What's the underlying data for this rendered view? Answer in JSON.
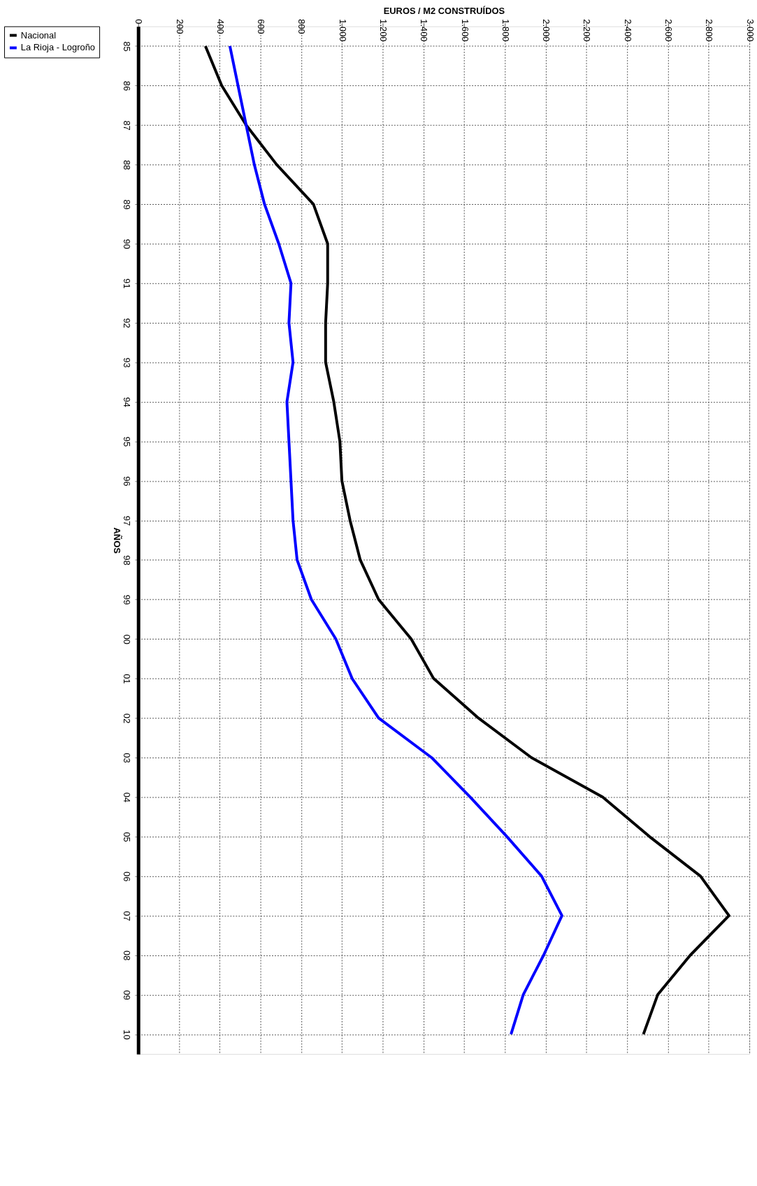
{
  "chart_data": {
    "type": "line",
    "orientation": "horizontal",
    "xlabel": "EUROS / M2 CONSTRUÍDOS",
    "ylabel": "AÑOS",
    "categories": [
      "85",
      "86",
      "87",
      "88",
      "89",
      "90",
      "91",
      "92",
      "93",
      "94",
      "95",
      "96",
      "97",
      "98",
      "99",
      "00",
      "01",
      "02",
      "03",
      "04",
      "05",
      "06",
      "07",
      "08",
      "09",
      "10"
    ],
    "series": [
      {
        "name": "Nacional",
        "color": "#000000",
        "values": [
          330,
          410,
          530,
          680,
          860,
          930,
          930,
          920,
          920,
          960,
          990,
          1000,
          1040,
          1090,
          1180,
          1340,
          1450,
          1670,
          1930,
          2280,
          2510,
          2760,
          2900,
          2710,
          2550,
          2480
        ]
      },
      {
        "name": "La Rioja - Logroño",
        "color": "#0000ff",
        "values": [
          450,
          490,
          530,
          570,
          620,
          690,
          750,
          740,
          760,
          730,
          740,
          750,
          760,
          780,
          850,
          970,
          1050,
          1180,
          1440,
          1630,
          1810,
          1980,
          2080,
          1990,
          1890,
          1830
        ]
      }
    ],
    "xlim": [
      0,
      3000
    ],
    "xticks": [
      0,
      200,
      400,
      600,
      800,
      {
        "value": 1000,
        "label": "1.000"
      },
      {
        "value": 1200,
        "label": "1.200"
      },
      {
        "value": 1400,
        "label": "1.400"
      },
      {
        "value": 1600,
        "label": "1.600"
      },
      {
        "value": 1800,
        "label": "1.800"
      },
      {
        "value": 2000,
        "label": "2.000"
      },
      {
        "value": 2200,
        "label": "2.200"
      },
      {
        "value": 2400,
        "label": "2.400"
      },
      {
        "value": 2600,
        "label": "2.600"
      },
      {
        "value": 2800,
        "label": "2.800"
      },
      {
        "value": 3000,
        "label": "3.000"
      }
    ],
    "grid": true,
    "legend": "left",
    "marker": "none",
    "line_style": "solid"
  }
}
